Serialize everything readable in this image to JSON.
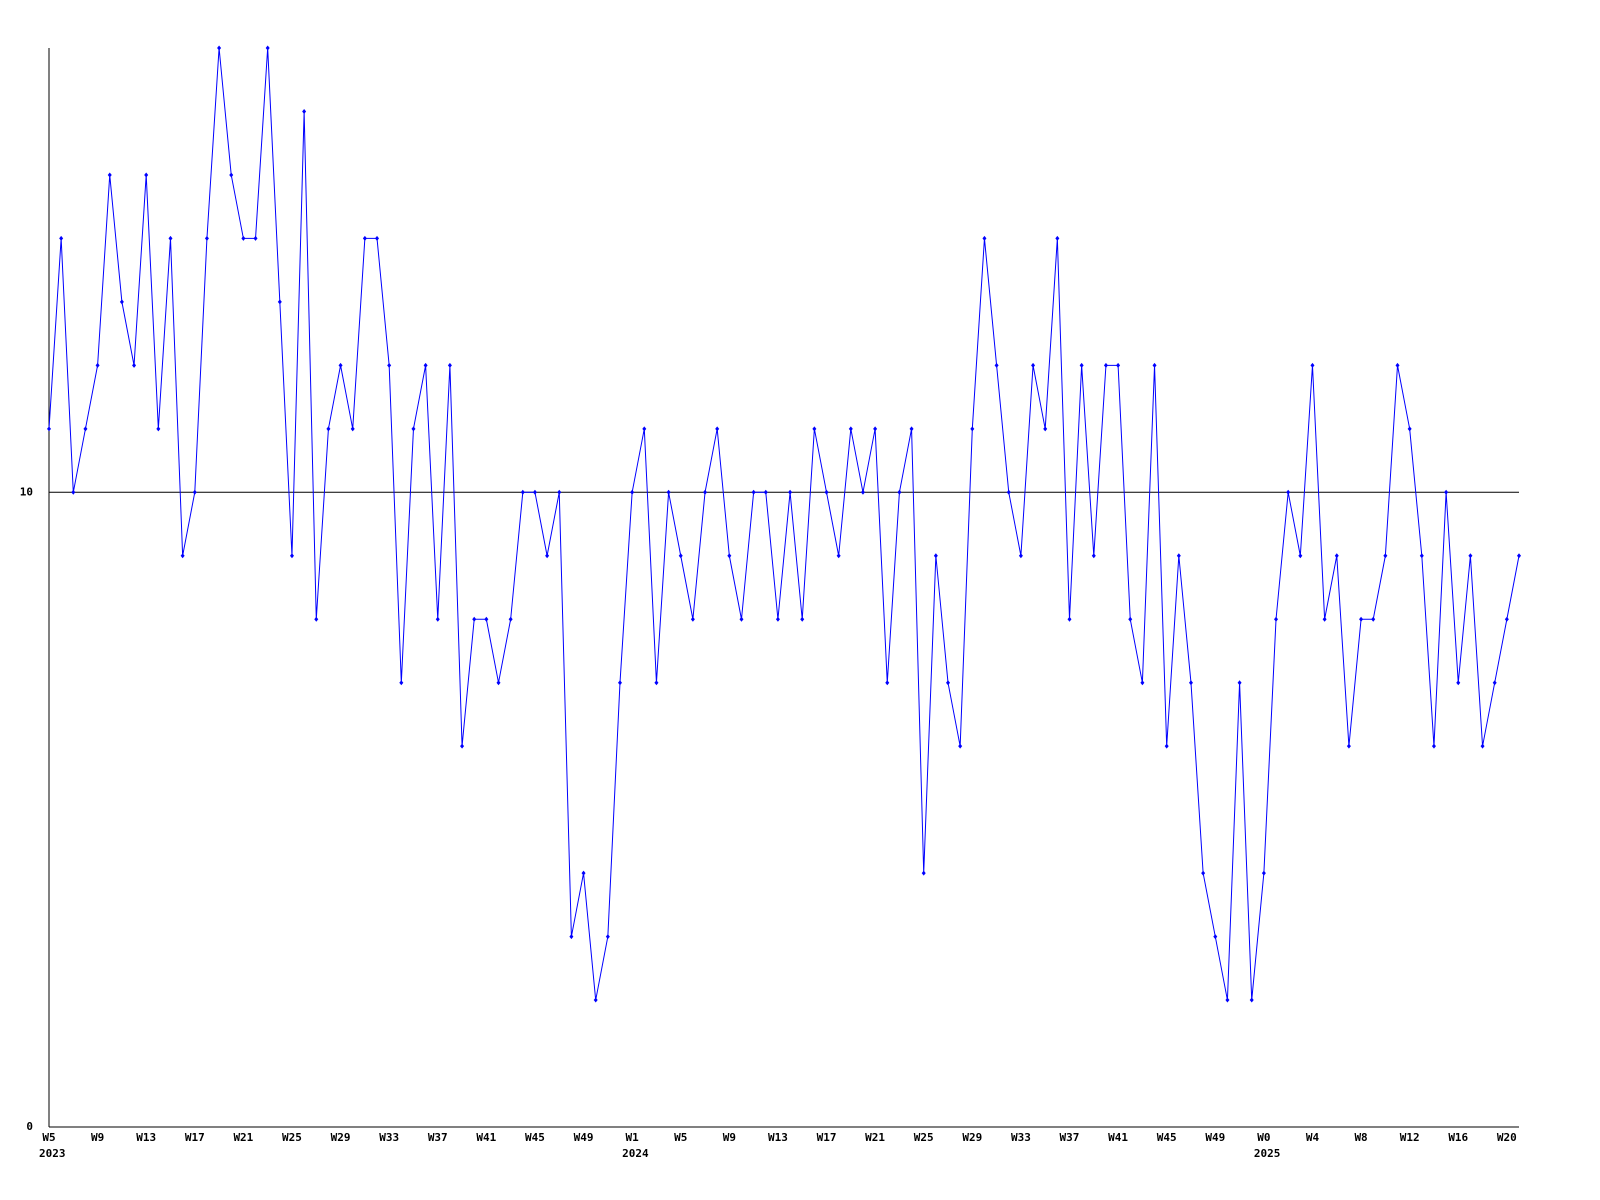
{
  "chart_data": {
    "type": "line",
    "categories": [
      "W5",
      null,
      null,
      null,
      "W9",
      null,
      null,
      null,
      "W13",
      null,
      null,
      null,
      "W17",
      null,
      null,
      null,
      "W21",
      null,
      null,
      null,
      "W25",
      null,
      null,
      null,
      "W29",
      null,
      null,
      null,
      "W33",
      null,
      null,
      null,
      "W37",
      null,
      null,
      null,
      "W41",
      null,
      null,
      null,
      "W45",
      null,
      null,
      null,
      "W49",
      null,
      null,
      null,
      "W1",
      null,
      null,
      null,
      "W5",
      null,
      null,
      null,
      "W9",
      null,
      null,
      null,
      "W13",
      null,
      null,
      null,
      "W17",
      null,
      null,
      null,
      "W21",
      null,
      null,
      null,
      "W25",
      null,
      null,
      null,
      "W29",
      null,
      null,
      null,
      "W33",
      null,
      null,
      null,
      "W37",
      null,
      null,
      null,
      "W41",
      null,
      null,
      null,
      "W45",
      null,
      null,
      null,
      "W49",
      null,
      null,
      null,
      "W0",
      null,
      null,
      null,
      "W4",
      null,
      null,
      null,
      "W8",
      null,
      null,
      null,
      "W12",
      null,
      null,
      null,
      "W16",
      null,
      null,
      null,
      "W20",
      null
    ],
    "category_groups": [
      "2023",
      null,
      null,
      null,
      null,
      null,
      null,
      null,
      null,
      null,
      null,
      null,
      null,
      null,
      null,
      null,
      null,
      null,
      null,
      null,
      null,
      null,
      null,
      null,
      null,
      null,
      null,
      null,
      null,
      null,
      null,
      null,
      null,
      null,
      null,
      null,
      null,
      null,
      null,
      null,
      null,
      null,
      null,
      null,
      null,
      null,
      null,
      null,
      "2024",
      null,
      null,
      null,
      null,
      null,
      null,
      null,
      null,
      null,
      null,
      null,
      null,
      null,
      null,
      null,
      null,
      null,
      null,
      null,
      null,
      null,
      null,
      null,
      null,
      null,
      null,
      null,
      null,
      null,
      null,
      null,
      null,
      null,
      null,
      null,
      null,
      null,
      null,
      null,
      null,
      null,
      null,
      null,
      null,
      null,
      null,
      null,
      null,
      null,
      null,
      null,
      "2025",
      null,
      null,
      null,
      null,
      null,
      null,
      null,
      null,
      null,
      null,
      null,
      null,
      null,
      null,
      null,
      null,
      null,
      null,
      null,
      null
    ],
    "values": [
      11,
      14,
      10,
      11,
      12,
      15,
      13,
      12,
      15,
      11,
      14,
      9,
      10,
      14,
      17,
      15,
      14,
      14,
      17,
      13,
      9,
      16,
      8,
      11,
      12,
      11,
      14,
      14,
      12,
      7,
      11,
      12,
      8,
      12,
      6,
      8,
      8,
      7,
      8,
      10,
      10,
      9,
      10,
      3,
      4,
      2,
      3,
      7,
      10,
      11,
      7,
      10,
      9,
      8,
      10,
      11,
      9,
      8,
      10,
      10,
      8,
      10,
      8,
      11,
      10,
      9,
      11,
      10,
      11,
      7,
      10,
      11,
      4,
      9,
      7,
      6,
      11,
      14,
      12,
      10,
      9,
      12,
      11,
      14,
      8,
      12,
      9,
      12,
      12,
      8,
      7,
      12,
      6,
      9,
      7,
      4,
      3,
      2,
      7,
      2,
      4,
      8,
      10,
      9,
      12,
      8,
      9,
      6,
      8,
      8,
      9,
      12,
      11,
      9,
      6,
      10,
      7,
      9,
      6,
      7,
      8,
      9
    ],
    "color": "#0000ff",
    "ylim": [
      0,
      17
    ],
    "yticks": [
      0,
      10
    ],
    "grid": true
  }
}
